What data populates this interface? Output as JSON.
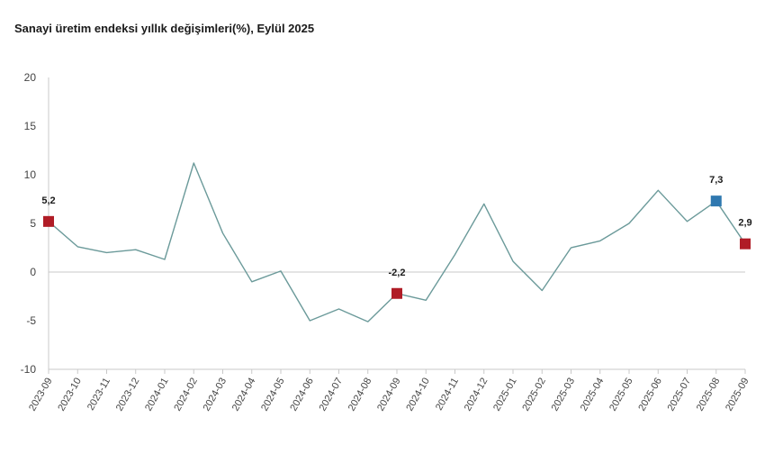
{
  "chart_data": {
    "type": "line",
    "title": "Sanayi üretim endeksi yıllık değişimleri(%), Eylül 2025",
    "xlabel": "",
    "ylabel": "",
    "ylim": [
      -10,
      20
    ],
    "yticks": [
      -10,
      -5,
      0,
      5,
      10,
      15,
      20
    ],
    "categories": [
      "2023-09",
      "2023-10",
      "2023-11",
      "2023-12",
      "2024-01",
      "2024-02",
      "2024-03",
      "2024-04",
      "2024-05",
      "2024-06",
      "2024-07",
      "2024-08",
      "2024-09",
      "2024-10",
      "2024-11",
      "2024-12",
      "2025-01",
      "2025-02",
      "2025-03",
      "2025-04",
      "2025-05",
      "2025-06",
      "2025-07",
      "2025-08",
      "2025-09"
    ],
    "series": [
      {
        "name": "Sanayi üretim endeksi yıllık değişim",
        "color": "#6b9a9a",
        "values": [
          5.2,
          2.6,
          2.0,
          2.3,
          1.3,
          11.2,
          4.0,
          -1.0,
          0.1,
          -5.0,
          -3.8,
          -5.1,
          -2.2,
          -2.9,
          1.8,
          7.0,
          1.1,
          -1.9,
          2.5,
          3.2,
          5.0,
          8.4,
          5.2,
          7.3,
          2.9
        ]
      }
    ],
    "highlights": [
      {
        "category": "2023-09",
        "value": 5.2,
        "label": "5,2",
        "color": "#b01c26"
      },
      {
        "category": "2024-09",
        "value": -2.2,
        "label": "-2,2",
        "color": "#b01c26"
      },
      {
        "category": "2025-08",
        "value": 7.3,
        "label": "7,3",
        "color": "#2f78b0"
      },
      {
        "category": "2025-09",
        "value": 2.9,
        "label": "2,9",
        "color": "#b01c26"
      }
    ],
    "grid": false,
    "legend": "none"
  }
}
